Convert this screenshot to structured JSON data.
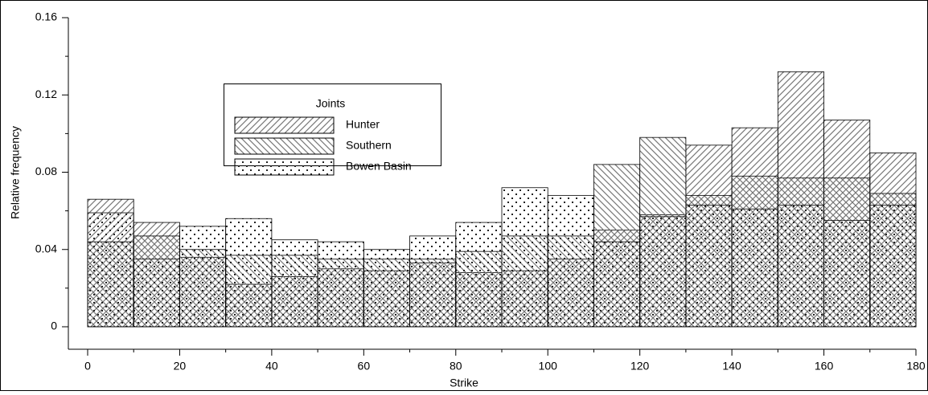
{
  "chart_data": {
    "type": "histogram",
    "xlabel": "Strike",
    "ylabel": "Relative frequency",
    "bins": [
      0,
      10,
      20,
      30,
      40,
      50,
      60,
      70,
      80,
      90,
      100,
      110,
      120,
      130,
      140,
      150,
      160,
      170,
      180
    ],
    "series": [
      {
        "name": "Hunter",
        "color": "#777777",
        "values": [
          0.066,
          0.054,
          0.036,
          0.022,
          0.026,
          0.03,
          0.029,
          0.033,
          0.028,
          0.029,
          0.035,
          0.05,
          0.058,
          0.094,
          0.103,
          0.132,
          0.107,
          0.09
        ]
      },
      {
        "name": "Southern",
        "color": "#777777",
        "values": [
          0.044,
          0.047,
          0.04,
          0.037,
          0.037,
          0.035,
          0.035,
          0.035,
          0.039,
          0.047,
          0.047,
          0.084,
          0.098,
          0.068,
          0.078,
          0.077,
          0.077,
          0.069
        ]
      },
      {
        "name": "Bowen Basin",
        "color": "#222222",
        "values": [
          0.059,
          0.035,
          0.052,
          0.056,
          0.045,
          0.044,
          0.04,
          0.047,
          0.054,
          0.072,
          0.068,
          0.044,
          0.057,
          0.063,
          0.061,
          0.063,
          0.055,
          0.063
        ]
      }
    ],
    "legend_title": "Joints",
    "xlim": [
      0,
      180
    ],
    "xticks": [
      0,
      20,
      40,
      60,
      80,
      100,
      120,
      140,
      160,
      180
    ],
    "ylim": [
      0,
      0.16
    ],
    "yticks": [
      0,
      0.04,
      0.08,
      0.12,
      0.16
    ]
  }
}
